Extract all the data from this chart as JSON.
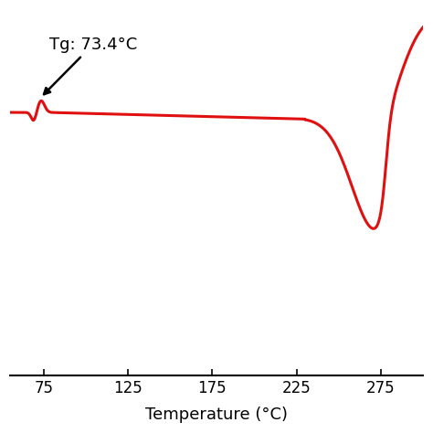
{
  "line_color": "#e01010",
  "line_width": 2.2,
  "background_color": "#ffffff",
  "xlabel": "Temperature (°C)",
  "xlabel_fontsize": 13,
  "xticks": [
    75,
    125,
    175,
    225,
    275
  ],
  "xlim": [
    55,
    300
  ],
  "ylim": [
    -1.8,
    0.7
  ],
  "annotation_text": "Tg: 73.4°C",
  "annotation_fontsize": 13,
  "tg_x": 73.4,
  "spine_color": "#000000"
}
